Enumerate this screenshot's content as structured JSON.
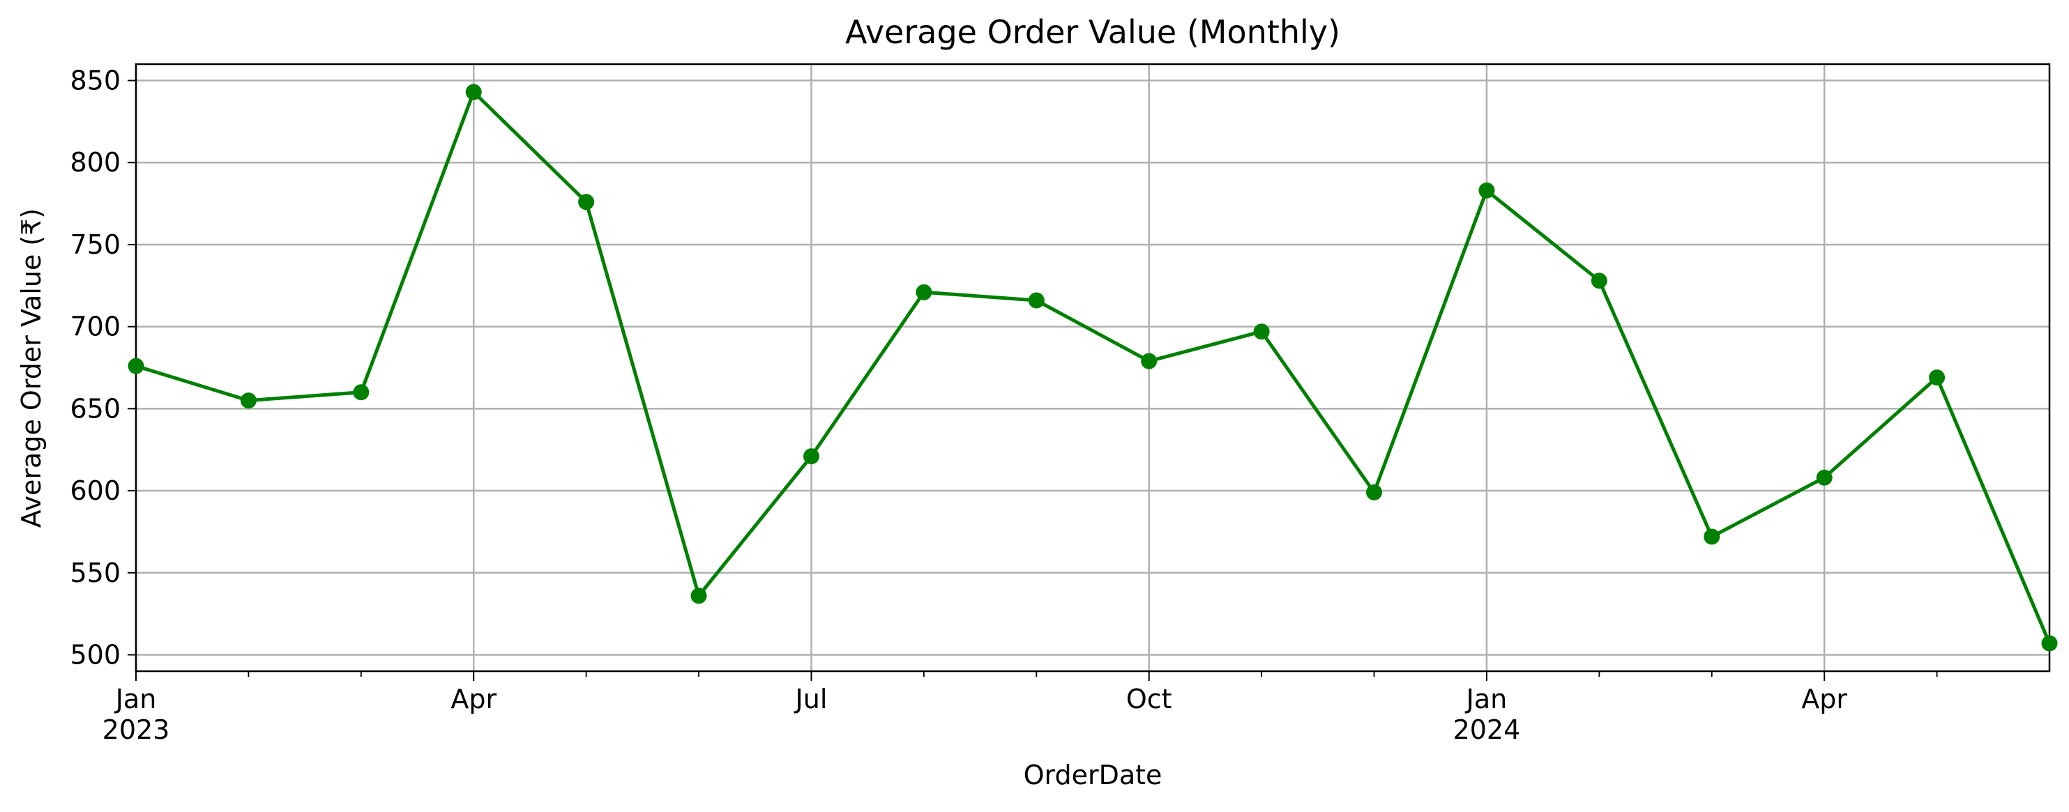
{
  "chart_data": {
    "type": "line",
    "title": "Average Order Value (Monthly)",
    "xlabel": "OrderDate",
    "ylabel": "Average Order Value (₹)",
    "ylim": [
      490,
      860
    ],
    "xlim": [
      "2023-01",
      "2024-06"
    ],
    "grid": true,
    "line_color": "#008000",
    "grid_color": "#b0b0b0",
    "x": [
      "2023-01",
      "2023-02",
      "2023-03",
      "2023-04",
      "2023-05",
      "2023-06",
      "2023-07",
      "2023-08",
      "2023-09",
      "2023-10",
      "2023-11",
      "2023-12",
      "2024-01",
      "2024-02",
      "2024-03",
      "2024-04",
      "2024-05",
      "2024-06"
    ],
    "values": [
      676,
      655,
      660,
      843,
      776,
      536,
      621,
      721,
      716,
      679,
      697,
      599,
      783,
      728,
      572,
      608,
      669,
      507
    ],
    "y_ticks": [
      500,
      550,
      600,
      650,
      700,
      750,
      800,
      850
    ],
    "x_major_ticks": [
      {
        "x": "2023-01",
        "label": "Jan",
        "sublabel": "2023"
      },
      {
        "x": "2023-04",
        "label": "Apr",
        "sublabel": ""
      },
      {
        "x": "2023-07",
        "label": "Jul",
        "sublabel": ""
      },
      {
        "x": "2023-10",
        "label": "Oct",
        "sublabel": ""
      },
      {
        "x": "2024-01",
        "label": "Jan",
        "sublabel": "2024"
      },
      {
        "x": "2024-04",
        "label": "Apr",
        "sublabel": ""
      }
    ],
    "x_minor_ticks": [
      "2023-02",
      "2023-03",
      "2023-05",
      "2023-06",
      "2023-08",
      "2023-09",
      "2023-11",
      "2023-12",
      "2024-02",
      "2024-03",
      "2024-05"
    ]
  }
}
